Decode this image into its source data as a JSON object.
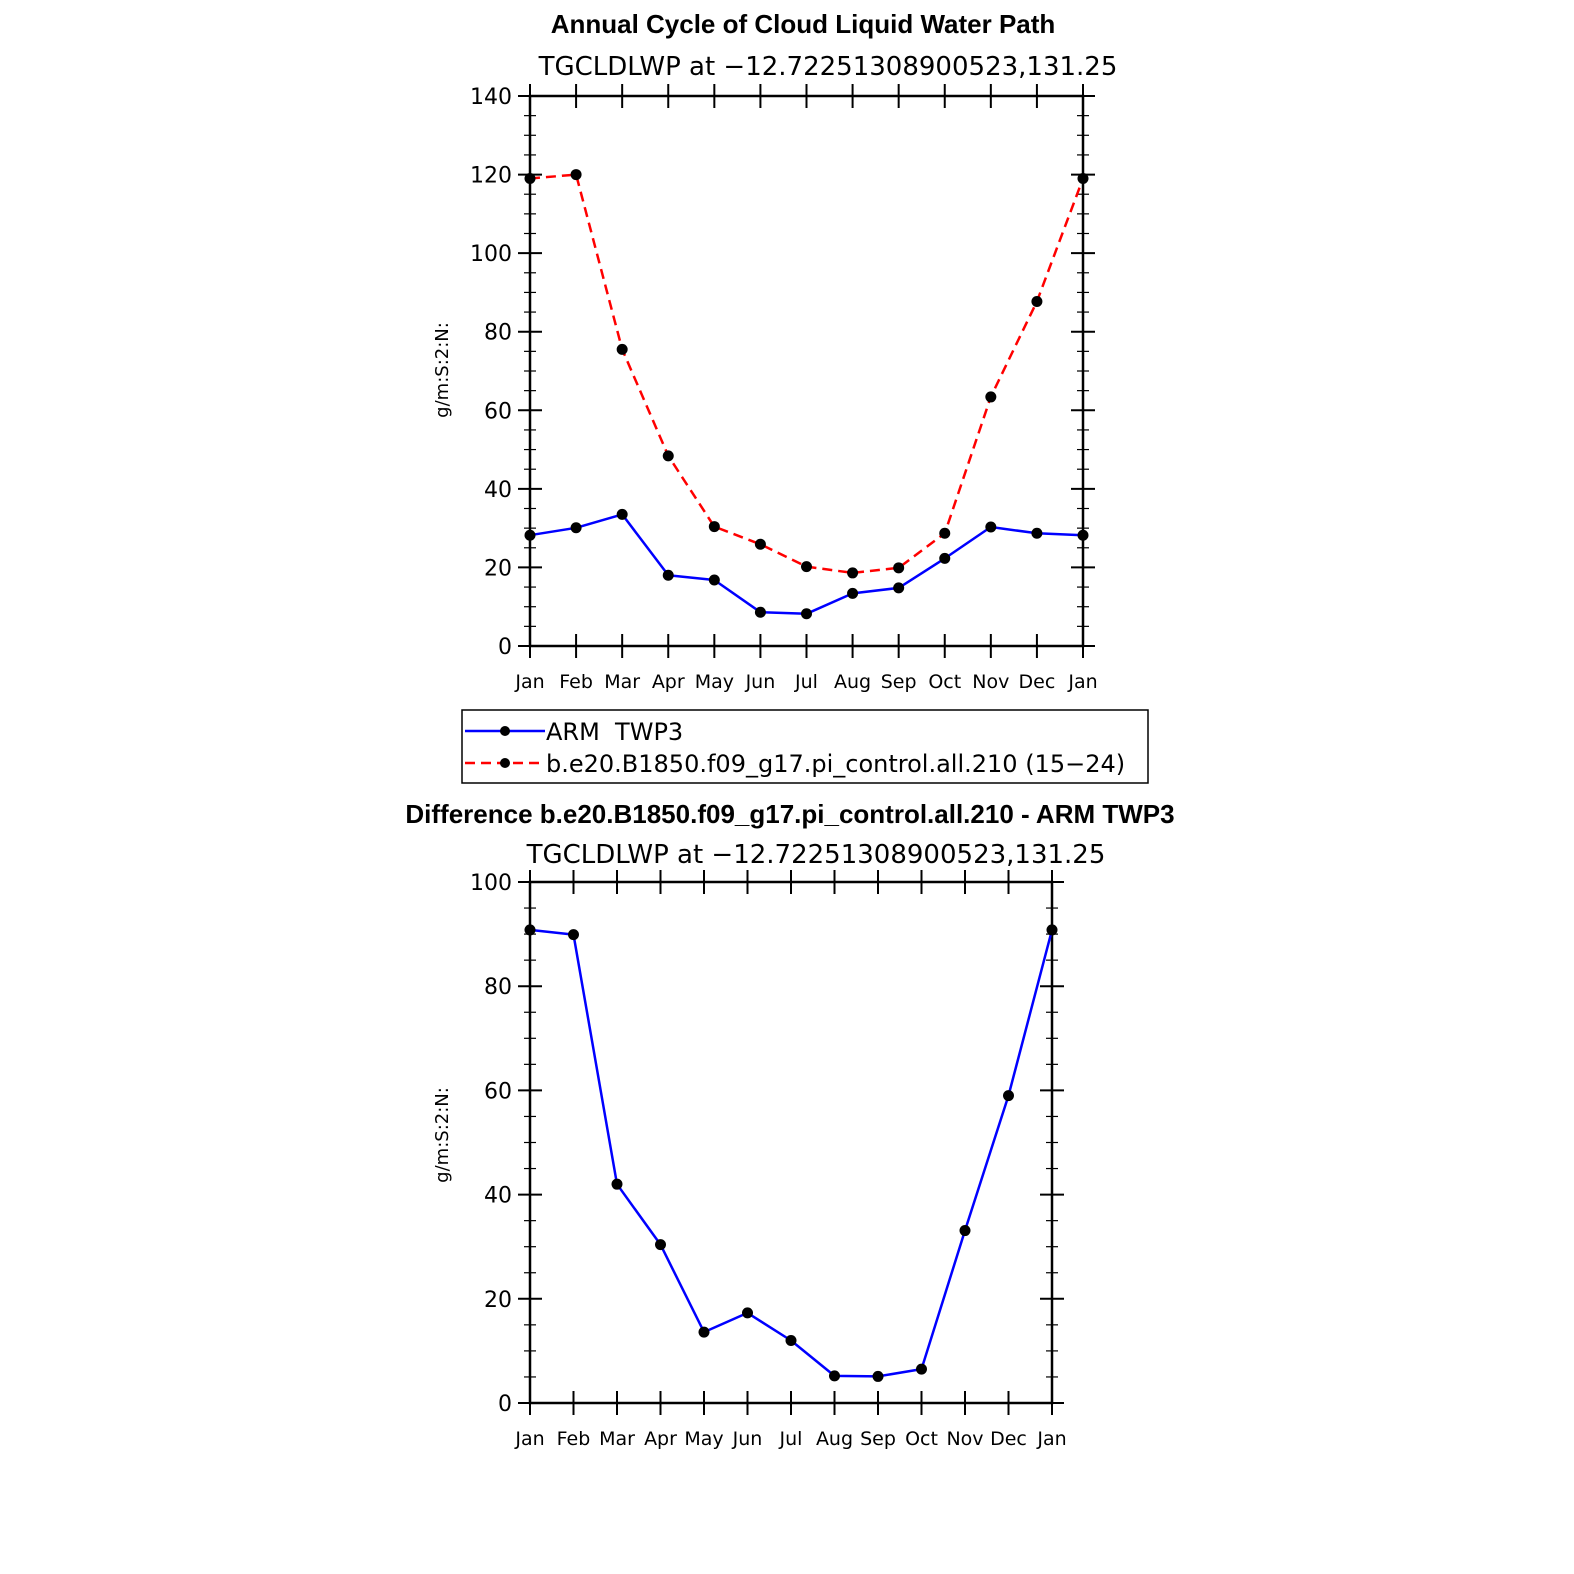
{
  "chart_data": [
    {
      "type": "line",
      "title": "Annual Cycle of Cloud Liquid Water Path",
      "subtitle": "TGCLDLWP  at  −12.72251308900523,131.25",
      "xlabel": "",
      "ylabel": "g/m:S:2:N:",
      "ylim": [
        0,
        140
      ],
      "yticks": [
        "0",
        "20",
        "40",
        "60",
        "80",
        "100",
        "120",
        "140"
      ],
      "categories": [
        "Jan",
        "Feb",
        "Mar",
        "Apr",
        "May",
        "Jun",
        "Jul",
        "Aug",
        "Sep",
        "Oct",
        "Nov",
        "Dec",
        "Jan"
      ],
      "grid": false,
      "legend_position": "below",
      "series": [
        {
          "name": "ARM  TWP3",
          "color": "#0000ff",
          "dash": "solid",
          "values": [
            28.2,
            30.1,
            33.5,
            18.0,
            16.8,
            8.6,
            8.2,
            13.4,
            14.8,
            22.3,
            30.3,
            28.7,
            28.2
          ]
        },
        {
          "name": "b.e20.B1850.f09_g17.pi_control.all.210 (15−24)",
          "color": "#ff0000",
          "dash": "dashed",
          "values": [
            119.0,
            120.0,
            75.5,
            48.4,
            30.4,
            25.9,
            20.2,
            18.6,
            19.9,
            28.7,
            63.4,
            87.7,
            119.0
          ]
        }
      ]
    },
    {
      "type": "line",
      "title": "Difference b.e20.B1850.f09_g17.pi_control.all.210 - ARM TWP3",
      "subtitle": "TGCLDLWP  at  −12.72251308900523,131.25",
      "xlabel": "",
      "ylabel": "g/m:S:2:N:",
      "ylim": [
        0,
        100
      ],
      "yticks": [
        "0",
        "20",
        "40",
        "60",
        "80",
        "100"
      ],
      "categories": [
        "Jan",
        "Feb",
        "Mar",
        "Apr",
        "May",
        "Jun",
        "Jul",
        "Aug",
        "Sep",
        "Oct",
        "Nov",
        "Dec",
        "Jan"
      ],
      "grid": false,
      "series": [
        {
          "color": "#0000ff",
          "dash": "solid",
          "values": [
            90.8,
            89.9,
            42.0,
            30.4,
            13.6,
            17.3,
            12.0,
            5.2,
            5.1,
            6.5,
            33.1,
            59.0,
            90.8
          ]
        }
      ]
    }
  ]
}
